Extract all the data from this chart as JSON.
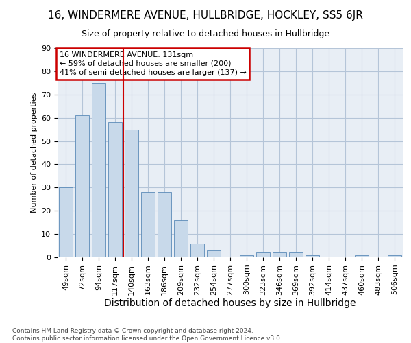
{
  "title": "16, WINDERMERE AVENUE, HULLBRIDGE, HOCKLEY, SS5 6JR",
  "subtitle": "Size of property relative to detached houses in Hullbridge",
  "xlabel": "Distribution of detached houses by size in Hullbridge",
  "ylabel": "Number of detached properties",
  "categories": [
    "49sqm",
    "72sqm",
    "94sqm",
    "117sqm",
    "140sqm",
    "163sqm",
    "186sqm",
    "209sqm",
    "232sqm",
    "254sqm",
    "277sqm",
    "300sqm",
    "323sqm",
    "346sqm",
    "369sqm",
    "392sqm",
    "414sqm",
    "437sqm",
    "460sqm",
    "483sqm",
    "506sqm"
  ],
  "bar_vals": [
    30,
    61,
    75,
    58,
    55,
    28,
    28,
    16,
    6,
    3,
    0,
    1,
    2,
    2,
    2,
    1,
    0,
    0,
    1,
    0,
    1
  ],
  "property_line_x": 4.0,
  "property_sqm": 131,
  "pct_smaller": 59,
  "n_smaller": 200,
  "pct_larger_semi": 41,
  "n_larger_semi": 137,
  "bar_color": "#c8d9ea",
  "bar_edge_color": "#5a8ab8",
  "line_color": "#cc0000",
  "ann_edge_color": "#cc0000",
  "bg_axes": "#e8eef5",
  "bg_fig": "#ffffff",
  "grid_color": "#b5c5d8",
  "footer": "Contains HM Land Registry data © Crown copyright and database right 2024.\nContains public sector information licensed under the Open Government Licence v3.0.",
  "ylim": [
    0,
    90
  ],
  "yticks": [
    0,
    10,
    20,
    30,
    40,
    50,
    60,
    70,
    80,
    90
  ],
  "title_fontsize": 11,
  "subtitle_fontsize": 9,
  "xlabel_fontsize": 10,
  "ylabel_fontsize": 8,
  "tick_fontsize": 8,
  "ann_fontsize": 8
}
